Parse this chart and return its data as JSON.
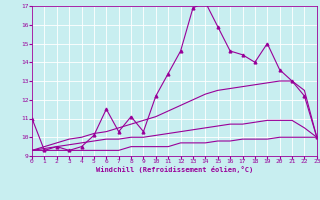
{
  "xlabel": "Windchill (Refroidissement éolien,°C)",
  "bg_color": "#c8eef0",
  "grid_color": "#ffffff",
  "line_color": "#990099",
  "x_hours": [
    0,
    1,
    2,
    3,
    4,
    5,
    6,
    7,
    8,
    9,
    10,
    11,
    12,
    13,
    14,
    15,
    16,
    17,
    18,
    19,
    20,
    21,
    22,
    23
  ],
  "main_line": [
    11.0,
    9.3,
    9.5,
    9.3,
    9.5,
    10.1,
    11.5,
    10.3,
    11.1,
    10.3,
    12.2,
    13.4,
    14.6,
    16.9,
    17.2,
    15.9,
    14.6,
    14.4,
    14.0,
    15.0,
    13.6,
    13.0,
    12.2,
    10.0
  ],
  "trend1": [
    9.3,
    9.5,
    9.7,
    9.9,
    10.0,
    10.2,
    10.3,
    10.5,
    10.7,
    10.9,
    11.1,
    11.4,
    11.7,
    12.0,
    12.3,
    12.5,
    12.6,
    12.7,
    12.8,
    12.9,
    13.0,
    13.0,
    12.5,
    10.0
  ],
  "trend2": [
    9.3,
    9.4,
    9.5,
    9.6,
    9.7,
    9.8,
    9.9,
    9.9,
    10.0,
    10.0,
    10.1,
    10.2,
    10.3,
    10.4,
    10.5,
    10.6,
    10.7,
    10.7,
    10.8,
    10.9,
    10.9,
    10.9,
    10.5,
    10.0
  ],
  "flat_line": [
    9.3,
    9.3,
    9.3,
    9.3,
    9.3,
    9.3,
    9.3,
    9.3,
    9.5,
    9.5,
    9.5,
    9.5,
    9.7,
    9.7,
    9.7,
    9.8,
    9.8,
    9.9,
    9.9,
    9.9,
    10.0,
    10.0,
    10.0,
    10.0
  ],
  "ylim": [
    9,
    17
  ],
  "xlim": [
    0,
    23
  ],
  "yticks": [
    9,
    10,
    11,
    12,
    13,
    14,
    15,
    16,
    17
  ],
  "xticks": [
    0,
    1,
    2,
    3,
    4,
    5,
    6,
    7,
    8,
    9,
    10,
    11,
    12,
    13,
    14,
    15,
    16,
    17,
    18,
    19,
    20,
    21,
    22,
    23
  ],
  "xlabel_fontsize": 5.0,
  "tick_fontsize": 4.5,
  "lw": 0.8,
  "marker_size": 2.0
}
